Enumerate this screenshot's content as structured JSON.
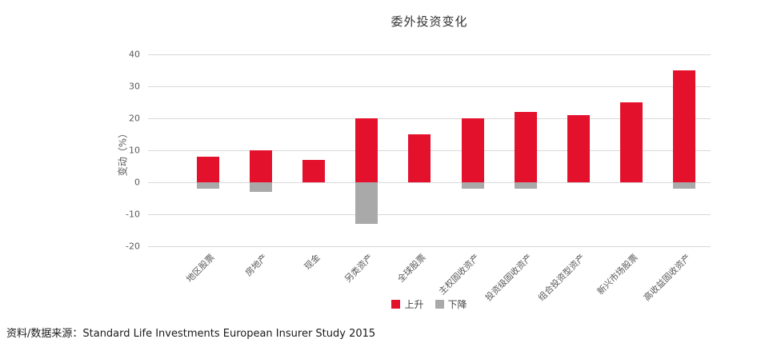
{
  "chart_data": {
    "type": "bar",
    "title": "委外投资变化",
    "ylabel": "变动（%）",
    "xlabel": "",
    "categories": [
      "地区股票",
      "房地产",
      "现金",
      "另类资产",
      "全球股票",
      "主权固收资产",
      "投资级固收资产",
      "组合投资型资产",
      "新兴市场股票",
      "高收益固收资产"
    ],
    "series": [
      {
        "name": "上升",
        "color": "#e4112d",
        "values": [
          8,
          10,
          7,
          20,
          15,
          20,
          22,
          21,
          25,
          35
        ]
      },
      {
        "name": "下降",
        "color": "#a9a9a9",
        "values": [
          -2,
          -3,
          0,
          -13,
          0,
          -2,
          -2,
          0,
          0,
          -2
        ]
      }
    ],
    "ylim": [
      -20,
      40
    ],
    "yticks": [
      40,
      30,
      20,
      10,
      0,
      -10,
      -20
    ],
    "grid": "horizontal",
    "grid_color": "#d9d9d9",
    "axis_text_color": "#595959",
    "legend_position": "bottom"
  },
  "source_line": "资料/数据来源：Standard Life Investments European Insurer Study 2015"
}
